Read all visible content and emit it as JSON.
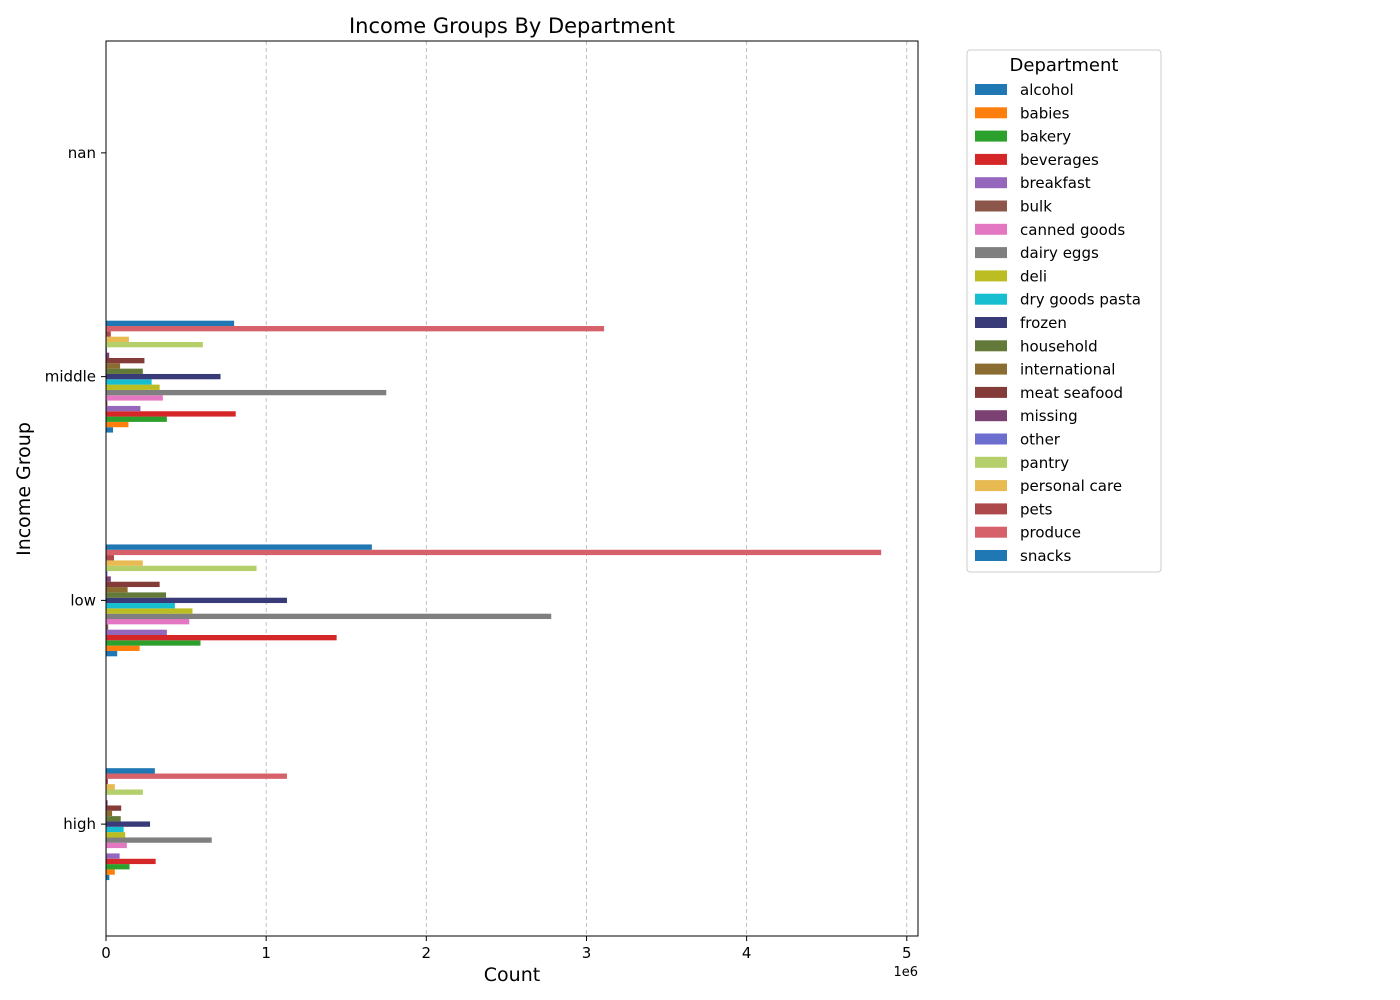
{
  "chart_data": {
    "type": "bar",
    "orientation": "horizontal",
    "title": "Income Groups By Department",
    "xlabel": "Count",
    "ylabel": "Income Group",
    "x_offset_label": "1e6",
    "xlim": [
      0,
      5070000
    ],
    "x_ticks": [
      0,
      1000000,
      2000000,
      3000000,
      4000000,
      5000000
    ],
    "x_tick_labels": [
      "0",
      "1",
      "2",
      "3",
      "4",
      "5"
    ],
    "grid": "x-dashed",
    "legend_title": "Department",
    "legend_position": "outside-right",
    "categories": [
      "high",
      "low",
      "middle",
      "nan"
    ],
    "series": [
      {
        "name": "alcohol",
        "color": "#1f77b4",
        "values": [
          21000,
          70000,
          44000,
          0
        ]
      },
      {
        "name": "babies",
        "color": "#ff7f0e",
        "values": [
          55000,
          210000,
          140000,
          0
        ]
      },
      {
        "name": "bakery",
        "color": "#2ca02c",
        "values": [
          147000,
          590000,
          380000,
          0
        ]
      },
      {
        "name": "beverages",
        "color": "#d62728",
        "values": [
          310000,
          1440000,
          810000,
          0
        ]
      },
      {
        "name": "breakfast",
        "color": "#9467bd",
        "values": [
          85000,
          380000,
          215000,
          0
        ]
      },
      {
        "name": "bulk",
        "color": "#8c564b",
        "values": [
          4000,
          14000,
          9000,
          0
        ]
      },
      {
        "name": "canned goods",
        "color": "#e377c2",
        "values": [
          130000,
          520000,
          355000,
          0
        ]
      },
      {
        "name": "dairy eggs",
        "color": "#7f7f7f",
        "values": [
          660000,
          2780000,
          1750000,
          0
        ]
      },
      {
        "name": "deli",
        "color": "#bcbd22",
        "values": [
          120000,
          540000,
          335000,
          0
        ]
      },
      {
        "name": "dry goods pasta",
        "color": "#17becf",
        "values": [
          110000,
          430000,
          285000,
          0
        ]
      },
      {
        "name": "frozen",
        "color": "#393b79",
        "values": [
          275000,
          1130000,
          715000,
          0
        ]
      },
      {
        "name": "household",
        "color": "#637939",
        "values": [
          92000,
          375000,
          230000,
          0
        ]
      },
      {
        "name": "international",
        "color": "#8c6d31",
        "values": [
          38000,
          135000,
          88000,
          0
        ]
      },
      {
        "name": "meat seafood",
        "color": "#843c39",
        "values": [
          95000,
          335000,
          240000,
          0
        ]
      },
      {
        "name": "missing",
        "color": "#7b4173",
        "values": [
          10000,
          30000,
          20000,
          0
        ]
      },
      {
        "name": "other",
        "color": "#6b6ecf",
        "values": [
          4000,
          9000,
          6000,
          0
        ]
      },
      {
        "name": "pantry",
        "color": "#b5cf6b",
        "values": [
          230000,
          940000,
          605000,
          0
        ]
      },
      {
        "name": "personal care",
        "color": "#e7ba52",
        "values": [
          55000,
          230000,
          143000,
          0
        ]
      },
      {
        "name": "pets",
        "color": "#ad494a",
        "values": [
          12000,
          50000,
          30000,
          0
        ]
      },
      {
        "name": "produce",
        "color": "#d6616b",
        "values": [
          1130000,
          4840000,
          3110000,
          0
        ]
      },
      {
        "name": "snacks",
        "color": "#1f77b4",
        "values": [
          305000,
          1660000,
          800000,
          0
        ]
      }
    ]
  }
}
